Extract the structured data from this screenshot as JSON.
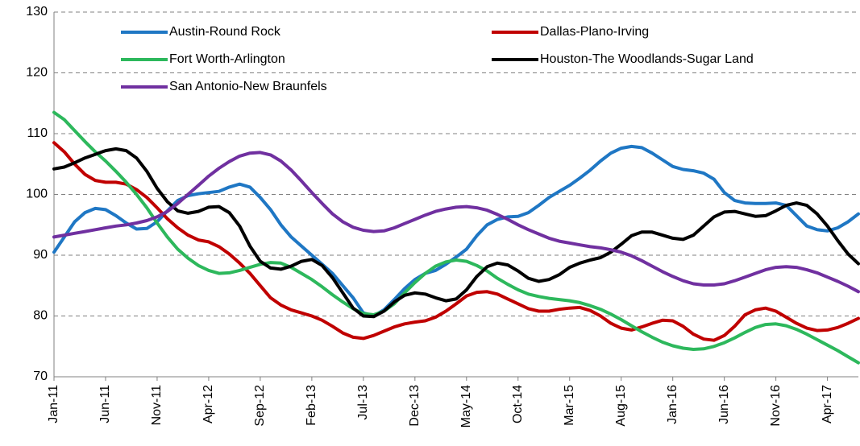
{
  "chart_data": {
    "type": "line",
    "categories": [
      "Jan-11",
      null,
      null,
      null,
      null,
      "Jun-11",
      null,
      null,
      null,
      null,
      "Nov-11",
      null,
      null,
      null,
      null,
      "Apr-12",
      null,
      null,
      null,
      null,
      "Sep-12",
      null,
      null,
      null,
      null,
      "Feb-13",
      null,
      null,
      null,
      null,
      "Jul-13",
      null,
      null,
      null,
      null,
      "Dec-13",
      null,
      null,
      null,
      null,
      "May-14",
      null,
      null,
      null,
      null,
      "Oct-14",
      null,
      null,
      null,
      null,
      "Mar-15",
      null,
      null,
      null,
      null,
      "Aug-15",
      null,
      null,
      null,
      null,
      "Jan-16",
      null,
      null,
      null,
      null,
      "Jun-16",
      null,
      null,
      null,
      null,
      "Nov-16",
      null,
      null,
      null,
      null,
      "Apr-17",
      null,
      null,
      null
    ],
    "series": [
      {
        "name": "Austin-Round Rock",
        "color": "#1f77c4",
        "values": [
          90.5,
          93,
          95.5,
          97,
          97.7,
          97.5,
          96.5,
          95.3,
          94.3,
          94.4,
          95.5,
          97.3,
          99,
          99.8,
          100.1,
          100.3,
          100.5,
          101.2,
          101.7,
          101.2,
          99.5,
          97.5,
          95,
          93,
          91.5,
          90,
          88.5,
          87,
          85,
          83,
          80.5,
          80,
          81,
          82.7,
          84.5,
          86,
          87,
          87.5,
          88.5,
          89.7,
          91,
          93.2,
          95,
          95.9,
          96.3,
          96.4,
          97,
          98.2,
          99.5,
          100.5,
          101.5,
          102.7,
          104,
          105.5,
          106.8,
          107.6,
          107.9,
          107.7,
          106.8,
          105.7,
          104.6,
          104.1,
          103.9,
          103.5,
          102.5,
          100.3,
          99,
          98.6,
          98.5,
          98.5,
          98.6,
          98.2,
          96.5,
          94.8,
          94.2,
          94,
          94.5,
          95.5,
          96.8
        ]
      },
      {
        "name": "Dallas-Plano-Irving",
        "color": "#c00000",
        "values": [
          108.5,
          107,
          105,
          103.3,
          102.3,
          102,
          102,
          101.7,
          100.8,
          99.5,
          97.8,
          96,
          94.5,
          93.3,
          92.5,
          92.2,
          91.4,
          90.2,
          88.7,
          87,
          85,
          83,
          81.8,
          81,
          80.5,
          80,
          79.3,
          78.3,
          77.2,
          76.5,
          76.3,
          76.8,
          77.5,
          78.2,
          78.7,
          79,
          79.2,
          79.8,
          80.8,
          82,
          83.3,
          83.9,
          84,
          83.6,
          82.8,
          82,
          81.2,
          80.8,
          80.8,
          81.1,
          81.3,
          81.4,
          80.9,
          80,
          78.8,
          78,
          77.7,
          78.2,
          78.8,
          79.3,
          79.2,
          78.3,
          77,
          76.2,
          76,
          76.8,
          78.3,
          80.2,
          81,
          81.3,
          80.8,
          79.8,
          78.8,
          78,
          77.6,
          77.7,
          78.1,
          78.8,
          79.6
        ]
      },
      {
        "name": "Fort Worth-Arlington",
        "color": "#2db85c",
        "values": [
          113.5,
          112.3,
          110.5,
          108.7,
          107,
          105.5,
          103.8,
          102,
          100,
          97.8,
          95.3,
          93,
          91,
          89.5,
          88.3,
          87.5,
          87,
          87.1,
          87.5,
          88,
          88.5,
          88.8,
          88.7,
          88,
          87,
          86,
          84.8,
          83.5,
          82.3,
          81.2,
          80.4,
          80.2,
          80.8,
          82,
          83.8,
          85.5,
          87,
          88.2,
          88.9,
          89.2,
          89,
          88.3,
          87.4,
          86.2,
          85.2,
          84.3,
          83.6,
          83.2,
          82.9,
          82.7,
          82.5,
          82.2,
          81.7,
          81.1,
          80.3,
          79.4,
          78.4,
          77.4,
          76.5,
          75.7,
          75.1,
          74.7,
          74.5,
          74.6,
          75,
          75.6,
          76.4,
          77.3,
          78.1,
          78.6,
          78.7,
          78.4,
          77.8,
          77,
          76.1,
          75.2,
          74.3,
          73.3,
          72.3
        ]
      },
      {
        "name": "Houston-The Woodlands-Sugar Land",
        "color": "#000000",
        "values": [
          104.2,
          104.5,
          105.2,
          106,
          106.6,
          107.2,
          107.5,
          107.2,
          106,
          103.8,
          101,
          98.8,
          97.3,
          96.9,
          97.2,
          97.9,
          98,
          97,
          94.8,
          91.5,
          89,
          87.9,
          87.7,
          88.2,
          89,
          89.3,
          88.3,
          86.3,
          83.8,
          81.3,
          80,
          79.9,
          80.8,
          82.3,
          83.4,
          83.8,
          83.6,
          83,
          82.5,
          82.8,
          84.3,
          86.5,
          88.1,
          88.7,
          88.4,
          87.4,
          86.2,
          85.7,
          86,
          86.8,
          88,
          88.7,
          89.2,
          89.6,
          90.5,
          91.8,
          93.2,
          93.8,
          93.8,
          93.3,
          92.8,
          92.6,
          93.3,
          94.8,
          96.3,
          97.1,
          97.2,
          96.8,
          96.4,
          96.5,
          97.3,
          98.2,
          98.6,
          98.2,
          96.8,
          94.8,
          92.4,
          90.2,
          88.6
        ]
      },
      {
        "name": "San Antonio-New Braunfels",
        "color": "#7030a0",
        "values": [
          93,
          93.3,
          93.6,
          93.9,
          94.2,
          94.5,
          94.8,
          95,
          95.3,
          95.7,
          96.3,
          97.2,
          98.5,
          100,
          101.5,
          103,
          104.3,
          105.4,
          106.3,
          106.8,
          106.9,
          106.5,
          105.5,
          104,
          102.2,
          100.3,
          98.5,
          96.8,
          95.5,
          94.6,
          94.1,
          93.9,
          94,
          94.5,
          95.2,
          95.9,
          96.6,
          97.2,
          97.6,
          97.9,
          98,
          97.8,
          97.4,
          96.7,
          95.9,
          95,
          94.2,
          93.5,
          92.8,
          92.3,
          92,
          91.7,
          91.4,
          91.2,
          90.9,
          90.5,
          89.9,
          89.1,
          88.2,
          87.3,
          86.5,
          85.8,
          85.3,
          85.1,
          85.1,
          85.3,
          85.8,
          86.4,
          87,
          87.6,
          88,
          88.1,
          88,
          87.6,
          87.1,
          86.4,
          85.7,
          84.9,
          84
        ]
      }
    ],
    "ylim": [
      70,
      130
    ],
    "yticks": [
      70,
      80,
      90,
      100,
      110,
      120,
      130
    ],
    "grid": true
  }
}
